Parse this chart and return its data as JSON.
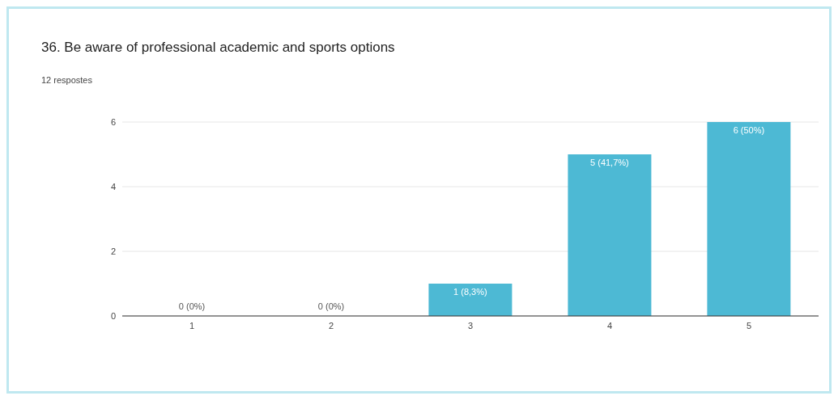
{
  "chart_data": {
    "type": "bar",
    "title": "36. Be aware of professional academic and sports options",
    "subtitle": "12 respostes",
    "categories": [
      "1",
      "2",
      "3",
      "4",
      "5"
    ],
    "values": [
      0,
      0,
      1,
      5,
      6
    ],
    "value_labels": [
      "0 (0%)",
      "0 (0%)",
      "1 (8,3%)",
      "5 (41,7%)",
      "6 (50%)"
    ],
    "color": "#4db9d4",
    "ylim": [
      0,
      6
    ],
    "yticks": [
      0,
      2,
      4,
      6
    ],
    "grid": "y"
  }
}
